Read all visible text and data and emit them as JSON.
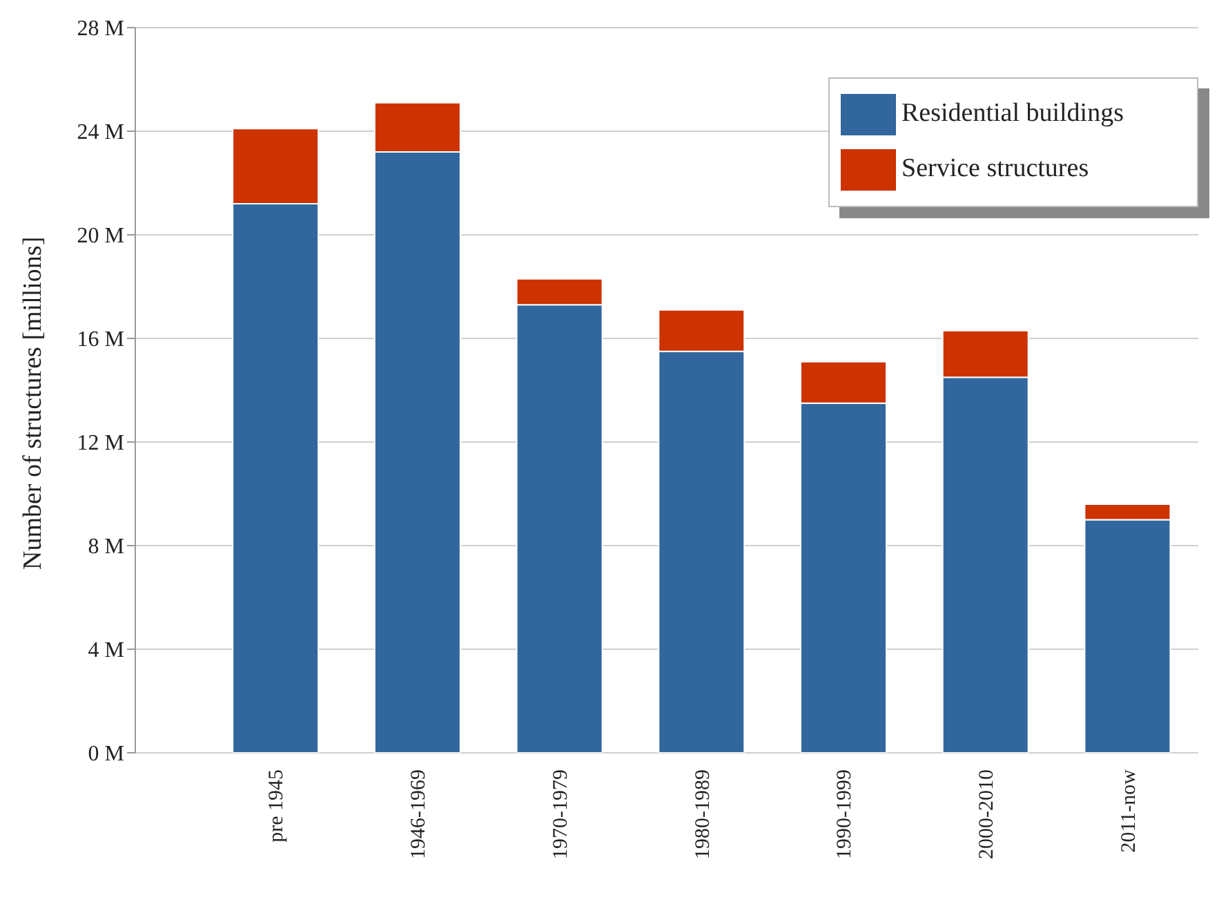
{
  "chart_data": {
    "type": "bar",
    "ylabel": "Number of structures [millions]",
    "categories": [
      "pre 1945",
      "1946-1969",
      "1970-1979",
      "1980-1989",
      "1990-1999",
      "2000-2010",
      "2011-now"
    ],
    "series": [
      {
        "name": "Residential buildings",
        "color": "#31679d",
        "values": [
          21.2,
          23.2,
          17.3,
          15.5,
          13.5,
          14.5,
          9.0
        ]
      },
      {
        "name": "Service structures",
        "color": "#cc3300",
        "values": [
          2.9,
          1.9,
          1.0,
          1.6,
          1.6,
          1.8,
          0.6
        ]
      }
    ],
    "stacked": true,
    "ylim": [
      0,
      28
    ],
    "yticks": [
      {
        "value": 0,
        "label": "0 M"
      },
      {
        "value": 4,
        "label": "4 M"
      },
      {
        "value": 8,
        "label": "8 M"
      },
      {
        "value": 12,
        "label": "12 M"
      },
      {
        "value": 16,
        "label": "16 M"
      },
      {
        "value": 20,
        "label": "20 M"
      },
      {
        "value": 24,
        "label": "24 M"
      },
      {
        "value": 28,
        "label": "28 M"
      }
    ],
    "grid": "y",
    "legend": "top right"
  }
}
